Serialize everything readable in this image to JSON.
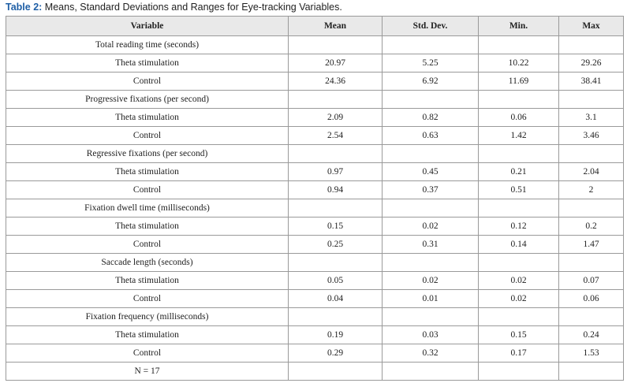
{
  "caption": {
    "label": "Table 2:",
    "text": "Means, Standard Deviations and Ranges for Eye-tracking Variables."
  },
  "table": {
    "header": [
      "Variable",
      "Mean",
      "Std. Dev.",
      "Min.",
      "Max"
    ],
    "rows": [
      [
        "Total reading time (seconds)"
      ],
      [
        "Theta stimulation",
        "20.97",
        "5.25",
        "10.22",
        "29.26"
      ],
      [
        "Control",
        "24.36",
        "6.92",
        "11.69",
        "38.41"
      ],
      [
        "Progressive fixations (per second)"
      ],
      [
        "Theta stimulation",
        "2.09",
        "0.82",
        "0.06",
        "3.1"
      ],
      [
        "Control",
        "2.54",
        "0.63",
        "1.42",
        "3.46"
      ],
      [
        "Regressive fixations (per second)"
      ],
      [
        "Theta stimulation",
        "0.97",
        "0.45",
        "0.21",
        "2.04"
      ],
      [
        "Control",
        "0.94",
        "0.37",
        "0.51",
        "2"
      ],
      [
        "Fixation dwell time (milliseconds)"
      ],
      [
        "Theta stimulation",
        "0.15",
        "0.02",
        "0.12",
        "0.2"
      ],
      [
        "Control",
        "0.25",
        "0.31",
        "0.14",
        "1.47"
      ],
      [
        "Saccade length (seconds)"
      ],
      [
        "Theta stimulation",
        "0.05",
        "0.02",
        "0.02",
        "0.07"
      ],
      [
        "Control",
        "0.04",
        "0.01",
        "0.02",
        "0.06"
      ],
      [
        "Fixation frequency (milliseconds)"
      ],
      [
        "Theta stimulation",
        "0.19",
        "0.03",
        "0.15",
        "0.24"
      ],
      [
        "Control",
        "0.29",
        "0.32",
        "0.17",
        "1.53"
      ],
      [
        "N = 17"
      ]
    ]
  }
}
